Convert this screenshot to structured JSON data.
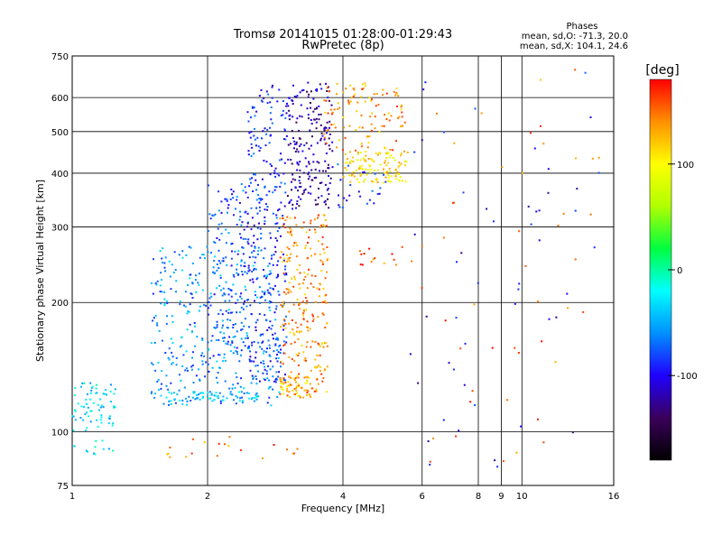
{
  "chart_data": {
    "type": "scatter",
    "title": "Tromsø 20141015 01:28:00-01:29:43",
    "subtitle": "RwPretec (8p)",
    "xlabel": "Frequency [MHz]",
    "ylabel": "Stationary phase Virtual Height [km]",
    "x_scale": "log",
    "y_scale": "log",
    "xlim": [
      1,
      16
    ],
    "ylim": [
      75,
      750
    ],
    "x_ticks": [
      1,
      2,
      4,
      6,
      8,
      9,
      10,
      16
    ],
    "x_tick_labels": [
      "1",
      "2",
      "4",
      "6",
      "8",
      "9",
      "10",
      "16"
    ],
    "y_ticks": [
      75,
      100,
      200,
      300,
      400,
      500,
      600,
      750
    ],
    "y_tick_labels": [
      "75",
      "100",
      "200",
      "300",
      "400",
      "500",
      "600",
      "750"
    ],
    "grid": true,
    "phases_title": "Phases",
    "phases_lines": [
      "mean, sd,O: -71.3, 20.0",
      "mean, sd,X: 104.1, 24.6"
    ],
    "colorbar": {
      "label": "[deg]",
      "min": -180,
      "max": 180,
      "ticks": [
        100,
        0,
        -100
      ],
      "tick_labels": [
        "100",
        "0",
        "-100"
      ],
      "colormap": [
        "#000000",
        "#3a005a",
        "#2000ff",
        "#0090ff",
        "#00ffff",
        "#00ff40",
        "#b0ff00",
        "#ffff00",
        "#ff9000",
        "#ff0000"
      ]
    },
    "clusters": [
      {
        "x": [
          1.0,
          1.25
        ],
        "y": [
          100,
          130
        ],
        "phase": -30,
        "n": 70
      },
      {
        "x": [
          1.0,
          1.25
        ],
        "y": [
          88,
          96
        ],
        "phase": -30,
        "n": 12
      },
      {
        "x": [
          1.5,
          2.9
        ],
        "y": [
          115,
          270
        ],
        "phase": -60,
        "n": 380
      },
      {
        "x": [
          1.6,
          2.6
        ],
        "y": [
          118,
          124
        ],
        "phase": -40,
        "n": 60
      },
      {
        "x": [
          2.0,
          2.45
        ],
        "y": [
          150,
          380
        ],
        "phase": -80,
        "n": 140
      },
      {
        "x": [
          2.45,
          3.0
        ],
        "y": [
          130,
          640
        ],
        "phase": -90,
        "n": 300
      },
      {
        "x": [
          3.0,
          3.8
        ],
        "y": [
          330,
          650
        ],
        "phase": -120,
        "n": 200
      },
      {
        "x": [
          2.9,
          3.7
        ],
        "y": [
          120,
          320
        ],
        "phase": 140,
        "n": 260
      },
      {
        "x": [
          2.9,
          3.4
        ],
        "y": [
          120,
          135
        ],
        "phase": 120,
        "n": 50
      },
      {
        "x": [
          3.6,
          5.5
        ],
        "y": [
          450,
          650
        ],
        "phase": 140,
        "n": 110
      },
      {
        "x": [
          4.0,
          5.6
        ],
        "y": [
          380,
          450
        ],
        "phase": 110,
        "n": 120
      },
      {
        "x": [
          3.8,
          5.0
        ],
        "y": [
          330,
          420
        ],
        "phase": -90,
        "n": 25
      },
      {
        "x": [
          4.2,
          5.8
        ],
        "y": [
          240,
          270
        ],
        "phase": 150,
        "n": 15
      },
      {
        "x": [
          5.6,
          15.0
        ],
        "y": [
          80,
          700
        ],
        "phase": -100,
        "n": 50
      },
      {
        "x": [
          5.6,
          15.0
        ],
        "y": [
          80,
          700
        ],
        "phase": 150,
        "n": 45
      },
      {
        "x": [
          1.6,
          3.4
        ],
        "y": [
          86,
          98
        ],
        "phase": 150,
        "n": 20
      }
    ]
  }
}
